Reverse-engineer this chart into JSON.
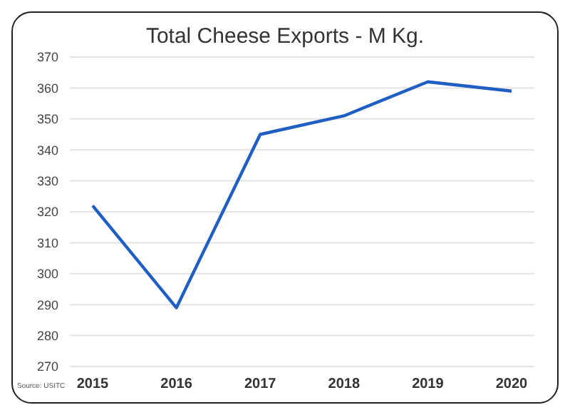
{
  "chart_data": {
    "type": "line",
    "title": "Total Cheese Exports - M Kg.",
    "categories": [
      "2015",
      "2016",
      "2017",
      "2018",
      "2019",
      "2020"
    ],
    "series": [
      {
        "color": "#1f5fc4",
        "values": [
          322,
          289,
          345,
          351,
          362,
          359
        ]
      }
    ],
    "ylim": [
      270,
      370
    ],
    "yticks": [
      270,
      280,
      290,
      300,
      310,
      320,
      330,
      340,
      350,
      360,
      370
    ],
    "grid": "y",
    "marker": "none",
    "line_style": "solid",
    "annotations": [
      "Source: USITC"
    ]
  }
}
